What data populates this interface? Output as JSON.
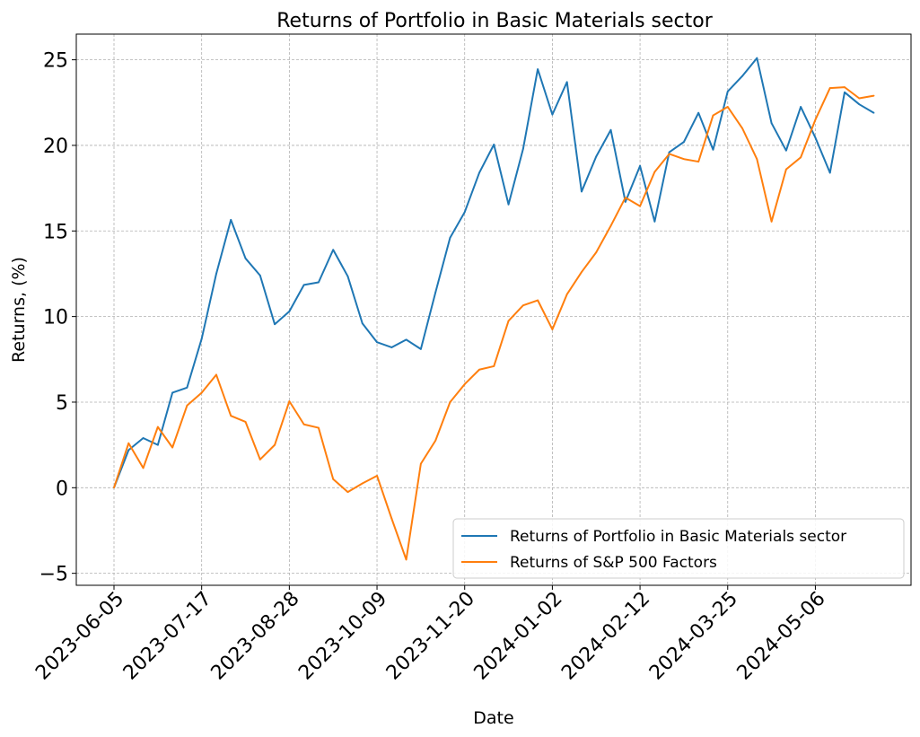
{
  "chart_data": {
    "type": "line",
    "title": "Returns of Portfolio in Basic Materials sector",
    "xlabel": "Date",
    "ylabel": "Returns, (%)",
    "x_ticks": [
      "2023-06-05",
      "2023-07-17",
      "2023-08-28",
      "2023-10-09",
      "2023-11-20",
      "2024-01-02",
      "2024-02-12",
      "2024-03-25",
      "2024-05-06"
    ],
    "x_tick_positions": [
      0,
      6,
      12,
      18,
      24,
      30,
      36,
      42,
      48
    ],
    "ylim": [
      -5.7,
      26.5
    ],
    "y_ticks": [
      -5,
      0,
      5,
      10,
      15,
      20,
      25
    ],
    "y_tick_labels": [
      "−5",
      "0",
      "5",
      "10",
      "15",
      "20",
      "25"
    ],
    "grid": true,
    "legend_position": "lower-right",
    "series": [
      {
        "name": "Returns of Portfolio in Basic Materials sector",
        "color": "#1f77b4",
        "values": [
          0,
          2.2,
          2.9,
          2.5,
          5.55,
          5.85,
          8.7,
          12.5,
          15.65,
          13.4,
          12.4,
          9.55,
          10.3,
          11.85,
          12.0,
          13.9,
          12.35,
          9.6,
          8.5,
          8.2,
          8.65,
          8.1,
          11.4,
          14.6,
          16.1,
          18.4,
          20.05,
          16.55,
          19.8,
          24.45,
          21.8,
          23.7,
          17.3,
          19.35,
          20.9,
          16.7,
          18.8,
          15.55,
          19.6,
          20.2,
          21.9,
          19.75,
          23.15,
          24.05,
          25.1,
          21.3,
          19.7,
          22.25,
          20.45,
          18.4,
          23.1,
          22.4,
          21.9
        ]
      },
      {
        "name": "Returns of S&P 500 Factors",
        "color": "#ff7f0e",
        "values": [
          0,
          2.6,
          1.15,
          3.55,
          2.35,
          4.8,
          5.55,
          6.6,
          4.2,
          3.85,
          1.65,
          2.5,
          5.05,
          3.7,
          3.5,
          0.5,
          -0.25,
          0.25,
          0.7,
          -1.8,
          -4.2,
          1.4,
          2.75,
          5.0,
          6.05,
          6.9,
          7.1,
          9.75,
          10.65,
          10.95,
          9.25,
          11.3,
          12.6,
          13.75,
          15.3,
          16.95,
          16.45,
          18.45,
          19.5,
          19.2,
          19.05,
          21.75,
          22.25,
          21.0,
          19.2,
          15.55,
          18.6,
          19.3,
          21.5,
          23.35,
          23.4,
          22.75,
          22.9
        ]
      }
    ]
  }
}
